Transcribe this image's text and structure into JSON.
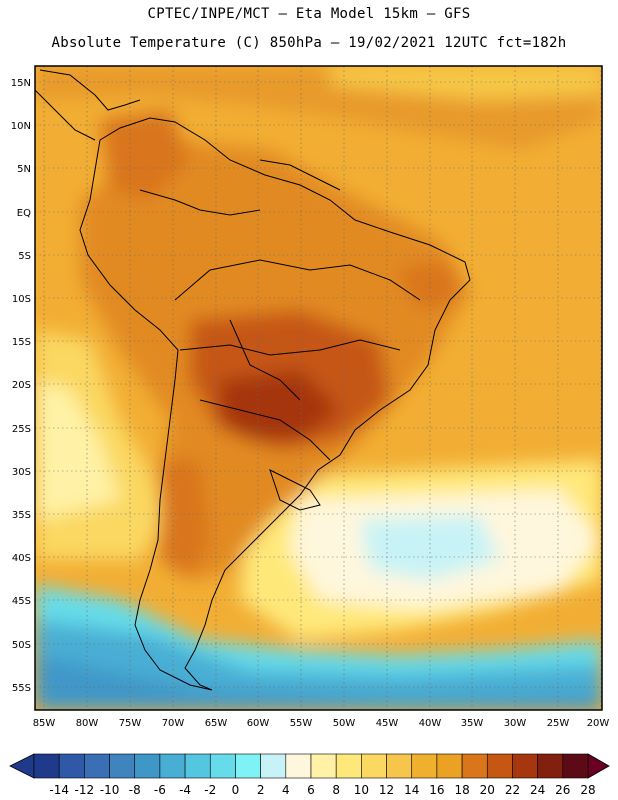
{
  "header": {
    "line1": "CPTEC/INPE/MCT –  Eta Model 15km – GFS",
    "line2": "Absolute Temperature (C) 850hPa – 19/02/2021 12UTC fct=182h"
  },
  "map": {
    "lat_labels": [
      "15N",
      "10N",
      "5N",
      "EQ",
      "5S",
      "10S",
      "15S",
      "20S",
      "25S",
      "30S",
      "35S",
      "40S",
      "45S",
      "50S",
      "55S"
    ],
    "lon_labels": [
      "85W",
      "80W",
      "75W",
      "70W",
      "65W",
      "60W",
      "55W",
      "50W",
      "45W",
      "40W",
      "35W",
      "30W",
      "25W",
      "20W"
    ]
  },
  "colorbar": {
    "ticks": [
      "-14",
      "-12",
      "-10",
      "-8",
      "-6",
      "-4",
      "-2",
      "0",
      "2",
      "4",
      "6",
      "8",
      "10",
      "12",
      "14",
      "16",
      "18",
      "20",
      "22",
      "24",
      "26",
      "28"
    ],
    "colors": [
      "#1f3a8a",
      "#2f58a6",
      "#3a6fb5",
      "#3f83bf",
      "#3f97c8",
      "#48aed4",
      "#55c6df",
      "#66dcea",
      "#7ef2f4",
      "#c8f3f6",
      "#fff7dd",
      "#fff2a6",
      "#ffe87a",
      "#fbd862",
      "#f6c64c",
      "#efb02e",
      "#eaa124",
      "#d9751a",
      "#c65712",
      "#a5360e",
      "#822010",
      "#5c0b16"
    ],
    "under_color": "#1f3a8a",
    "over_color": "#6a0022"
  }
}
